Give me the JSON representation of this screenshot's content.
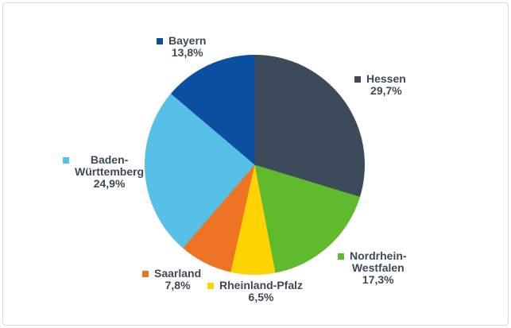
{
  "chart_data": {
    "type": "pie",
    "title": "",
    "direction": "clockwise",
    "start_angle_deg": 0,
    "legend_position": "outside-data-labels",
    "text_color": "#3c4a59",
    "background": "#ffffff",
    "frame_border_color": "#d8d8d8",
    "value_format": "percent-comma-decimal",
    "slices": [
      {
        "label": "Hessen",
        "value": 29.7,
        "percent_label": "29,7%",
        "color": "#3c4a59",
        "display": "Hessen\n29,7%"
      },
      {
        "label": "Nordrhein-Westfalen",
        "value": 17.3,
        "percent_label": "17,3%",
        "color": "#5fbb2d",
        "display": "Nordrhein-\nWestfalen\n17,3%"
      },
      {
        "label": "Rheinland-Pfalz",
        "value": 6.5,
        "percent_label": "6,5%",
        "color": "#ffd301",
        "display": "Rheinland-Pfalz\n6,5%"
      },
      {
        "label": "Saarland",
        "value": 7.8,
        "percent_label": "7,8%",
        "color": "#ee7425",
        "color_note": "orange",
        "display": "Saarland\n7,8%"
      },
      {
        "label": "Baden-Württemberg",
        "value": 24.9,
        "percent_label": "24,9%",
        "color": "#57c0e7",
        "display": "Baden-\nWürttemberg\n24,9%"
      },
      {
        "label": "Bayern",
        "value": 13.8,
        "percent_label": "13,8%",
        "color": "#0c4ea2",
        "display": "Bayern\n13,8%"
      }
    ]
  }
}
